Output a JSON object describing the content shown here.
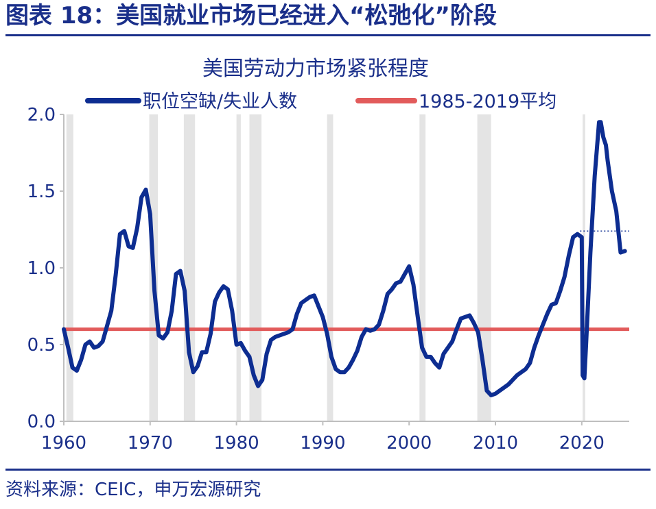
{
  "figure_title": "图表 18：美国就业市场已经进入“松弛化”阶段",
  "source_text": "资料来源：CEIC，申万宏源研究",
  "colors": {
    "heading": "#1a2f8a",
    "series_line": "#0d2d91",
    "average_line": "#e25b5b",
    "recession_shade": "#e4e4e4",
    "axis": "#bfbfbf",
    "text": "#1a2f8a"
  },
  "chart_data": {
    "type": "line",
    "title": "美国劳动力市场紧张程度",
    "xlabel": "",
    "ylabel": "",
    "xlim": [
      1960,
      2025.5
    ],
    "ylim": [
      0,
      2
    ],
    "x_ticks": [
      1960,
      1970,
      1980,
      1990,
      2000,
      2010,
      2020
    ],
    "y_ticks": [
      0.0,
      0.5,
      1.0,
      1.5,
      2.0
    ],
    "legend_position": "top",
    "grid": false,
    "series": [
      {
        "name": "职位空缺/失业人数",
        "x": [
          1960,
          1960.5,
          1961,
          1961.5,
          1962,
          1962.5,
          1963,
          1963.5,
          1964,
          1964.5,
          1965,
          1965.5,
          1966,
          1966.5,
          1967,
          1967.5,
          1968,
          1968.5,
          1969,
          1969.5,
          1970,
          1970.5,
          1971,
          1971.5,
          1972,
          1972.5,
          1973,
          1973.5,
          1974,
          1974.5,
          1975,
          1975.5,
          1976,
          1976.5,
          1977,
          1977.5,
          1978,
          1978.5,
          1979,
          1979.5,
          1980,
          1980.5,
          1981,
          1981.5,
          1982,
          1982.5,
          1983,
          1983.5,
          1984,
          1984.5,
          1985,
          1985.5,
          1986,
          1986.5,
          1987,
          1987.5,
          1988,
          1988.5,
          1989,
          1989.5,
          1990,
          1990.5,
          1991,
          1991.5,
          1992,
          1992.5,
          1993,
          1993.5,
          1994,
          1994.5,
          1995,
          1995.5,
          1996,
          1996.5,
          1997,
          1997.5,
          1998,
          1998.5,
          1999,
          1999.5,
          2000,
          2000.5,
          2001,
          2001.5,
          2002,
          2002.5,
          2003,
          2003.5,
          2004,
          2004.5,
          2005,
          2005.5,
          2006,
          2006.5,
          2007,
          2007.5,
          2008,
          2008.5,
          2009,
          2009.5,
          2010,
          2010.5,
          2011,
          2011.5,
          2012,
          2012.5,
          2013,
          2013.5,
          2014,
          2014.5,
          2015,
          2015.5,
          2016,
          2016.5,
          2017,
          2017.5,
          2018,
          2018.5,
          2019,
          2019.5,
          2020,
          2020.1,
          2020.3,
          2020.5,
          2021,
          2021.5,
          2022,
          2022.2,
          2022.5,
          2022.8,
          2023,
          2023.5,
          2024,
          2024.5,
          2025
        ],
        "values": [
          0.6,
          0.48,
          0.35,
          0.33,
          0.4,
          0.5,
          0.52,
          0.48,
          0.49,
          0.52,
          0.62,
          0.72,
          0.95,
          1.22,
          1.24,
          1.14,
          1.13,
          1.26,
          1.46,
          1.51,
          1.35,
          0.85,
          0.56,
          0.54,
          0.58,
          0.72,
          0.96,
          0.98,
          0.85,
          0.45,
          0.32,
          0.36,
          0.45,
          0.45,
          0.57,
          0.78,
          0.84,
          0.88,
          0.86,
          0.72,
          0.5,
          0.51,
          0.46,
          0.42,
          0.3,
          0.23,
          0.27,
          0.44,
          0.53,
          0.55,
          0.56,
          0.57,
          0.58,
          0.6,
          0.7,
          0.77,
          0.79,
          0.81,
          0.82,
          0.75,
          0.68,
          0.57,
          0.42,
          0.34,
          0.32,
          0.32,
          0.35,
          0.4,
          0.46,
          0.55,
          0.6,
          0.59,
          0.6,
          0.63,
          0.72,
          0.83,
          0.86,
          0.9,
          0.91,
          0.96,
          1.01,
          0.89,
          0.68,
          0.48,
          0.42,
          0.42,
          0.38,
          0.35,
          0.44,
          0.48,
          0.52,
          0.6,
          0.67,
          0.68,
          0.69,
          0.64,
          0.58,
          0.4,
          0.2,
          0.17,
          0.18,
          0.2,
          0.22,
          0.24,
          0.27,
          0.3,
          0.32,
          0.34,
          0.38,
          0.48,
          0.56,
          0.63,
          0.7,
          0.76,
          0.77,
          0.85,
          0.94,
          1.08,
          1.2,
          1.22,
          1.2,
          0.3,
          0.28,
          0.5,
          1.1,
          1.6,
          1.95,
          1.95,
          1.85,
          1.8,
          1.7,
          1.5,
          1.37,
          1.1,
          1.11
        ]
      },
      {
        "name": "1985-2019平均",
        "x": [
          1960,
          2025.5
        ],
        "values": [
          0.6,
          0.6
        ]
      }
    ],
    "reference_line": {
      "y": 1.24,
      "x_start": 2019.8,
      "x_end": 2025.5,
      "style": "dotted"
    },
    "recession_shading": [
      [
        1960.3,
        1961.1
      ],
      [
        1969.9,
        1970.9
      ],
      [
        1973.9,
        1975.2
      ],
      [
        1980.0,
        1980.5
      ],
      [
        1981.5,
        1982.9
      ],
      [
        1990.5,
        1991.2
      ],
      [
        2001.2,
        2001.9
      ],
      [
        2007.9,
        2009.5
      ],
      [
        2020.1,
        2020.4
      ]
    ]
  }
}
